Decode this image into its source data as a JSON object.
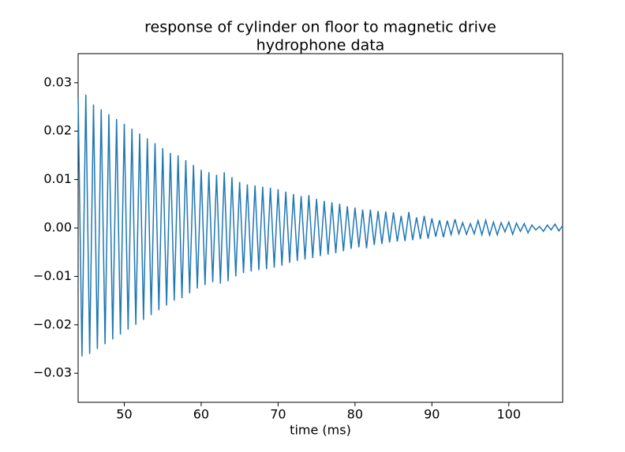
{
  "chart_data": {
    "type": "line",
    "title": "response of cylinder on floor to magnetic drive",
    "subtitle": "hydrophone data",
    "x_label": "time (ms)",
    "color": "#1f77b4",
    "x": [
      44,
      44.5,
      45,
      45.5,
      46,
      46.5,
      47,
      47.5,
      48,
      48.5,
      49,
      49.5,
      50,
      50.5,
      51,
      51.5,
      52,
      52.5,
      53,
      53.5,
      54,
      54.5,
      55,
      55.5,
      56,
      56.5,
      57,
      57.5,
      58,
      58.5,
      59,
      59.5,
      60,
      60.5,
      61,
      61.5,
      62,
      62.5,
      63,
      63.5,
      64,
      64.5,
      65,
      65.5,
      66,
      66.5,
      67,
      67.5,
      68,
      68.5,
      69,
      69.5,
      70,
      70.5,
      71,
      71.5,
      72,
      72.5,
      73,
      73.5,
      74,
      74.5,
      75,
      75.5,
      76,
      76.5,
      77,
      77.5,
      78,
      78.5,
      79,
      79.5,
      80,
      80.5,
      81,
      81.5,
      82,
      82.5,
      83,
      83.5,
      84,
      84.5,
      85,
      85.5,
      86,
      86.5,
      87,
      87.5,
      88,
      88.5,
      89,
      89.5,
      90,
      90.5,
      91,
      91.5,
      92,
      92.5,
      93,
      93.5,
      94,
      94.5,
      95,
      95.5,
      96,
      96.5,
      97,
      97.5,
      98,
      98.5,
      99,
      99.5,
      100,
      100.5,
      101,
      101.5,
      102,
      102.5,
      103,
      103.5,
      104,
      104.5,
      105,
      105.5,
      106,
      106.5,
      107
    ],
    "values": [
      0.027,
      -0.0265,
      0.0275,
      -0.026,
      0.0255,
      -0.025,
      0.0245,
      -0.024,
      0.0235,
      -0.023,
      0.0225,
      -0.022,
      0.0215,
      -0.021,
      0.0205,
      -0.02,
      0.0195,
      -0.019,
      0.0185,
      -0.018,
      0.0175,
      -0.017,
      0.0165,
      -0.016,
      0.0155,
      -0.015,
      0.015,
      -0.0145,
      0.014,
      -0.0135,
      0.013,
      -0.0125,
      0.012,
      -0.0118,
      0.0115,
      -0.0112,
      0.011,
      -0.0115,
      0.0115,
      -0.011,
      0.0105,
      -0.01,
      0.0095,
      -0.0093,
      0.009,
      -0.009,
      0.0088,
      -0.0087,
      0.0085,
      -0.0085,
      0.0083,
      -0.0082,
      0.008,
      -0.0078,
      0.0075,
      -0.0072,
      0.007,
      -0.0068,
      0.0066,
      -0.0065,
      0.0068,
      -0.0062,
      0.006,
      -0.0058,
      0.0056,
      -0.0055,
      0.0053,
      -0.0052,
      0.005,
      -0.0048,
      0.0045,
      -0.0043,
      0.0042,
      -0.004,
      0.0038,
      -0.0042,
      0.0038,
      -0.0035,
      0.0035,
      -0.0033,
      0.0034,
      -0.003,
      0.0032,
      -0.0028,
      0.0025,
      -0.0027,
      0.0033,
      -0.0025,
      0.0022,
      -0.0023,
      0.0025,
      -0.0022,
      0.002,
      -0.0018,
      0.0016,
      -0.0019,
      0.0015,
      -0.0014,
      0.0018,
      -0.0012,
      0.0011,
      -0.0013,
      0.0009,
      -0.0012,
      0.0015,
      -0.0014,
      0.0016,
      -0.0015,
      0.0012,
      -0.0014,
      0.0011,
      -0.0008,
      0.0012,
      -0.0013,
      0.001,
      -0.0007,
      0.0009,
      -0.001,
      0.0006,
      -0.0004,
      0.0003,
      -0.0007,
      0.0006,
      -0.0004,
      0.0008,
      -0.0006,
      0.0005
    ],
    "xlim": [
      44,
      107
    ],
    "xticks": [
      50,
      60,
      70,
      80,
      90,
      100
    ],
    "ylim": [
      -0.036,
      0.036
    ],
    "yticks": [
      {
        "value": -0.03,
        "label": "−0.03"
      },
      {
        "value": -0.02,
        "label": "−0.02"
      },
      {
        "value": -0.01,
        "label": "−0.01"
      },
      {
        "value": 0,
        "label": "0.00"
      },
      0.01,
      0.02,
      0.03
    ],
    "grid": false
  }
}
